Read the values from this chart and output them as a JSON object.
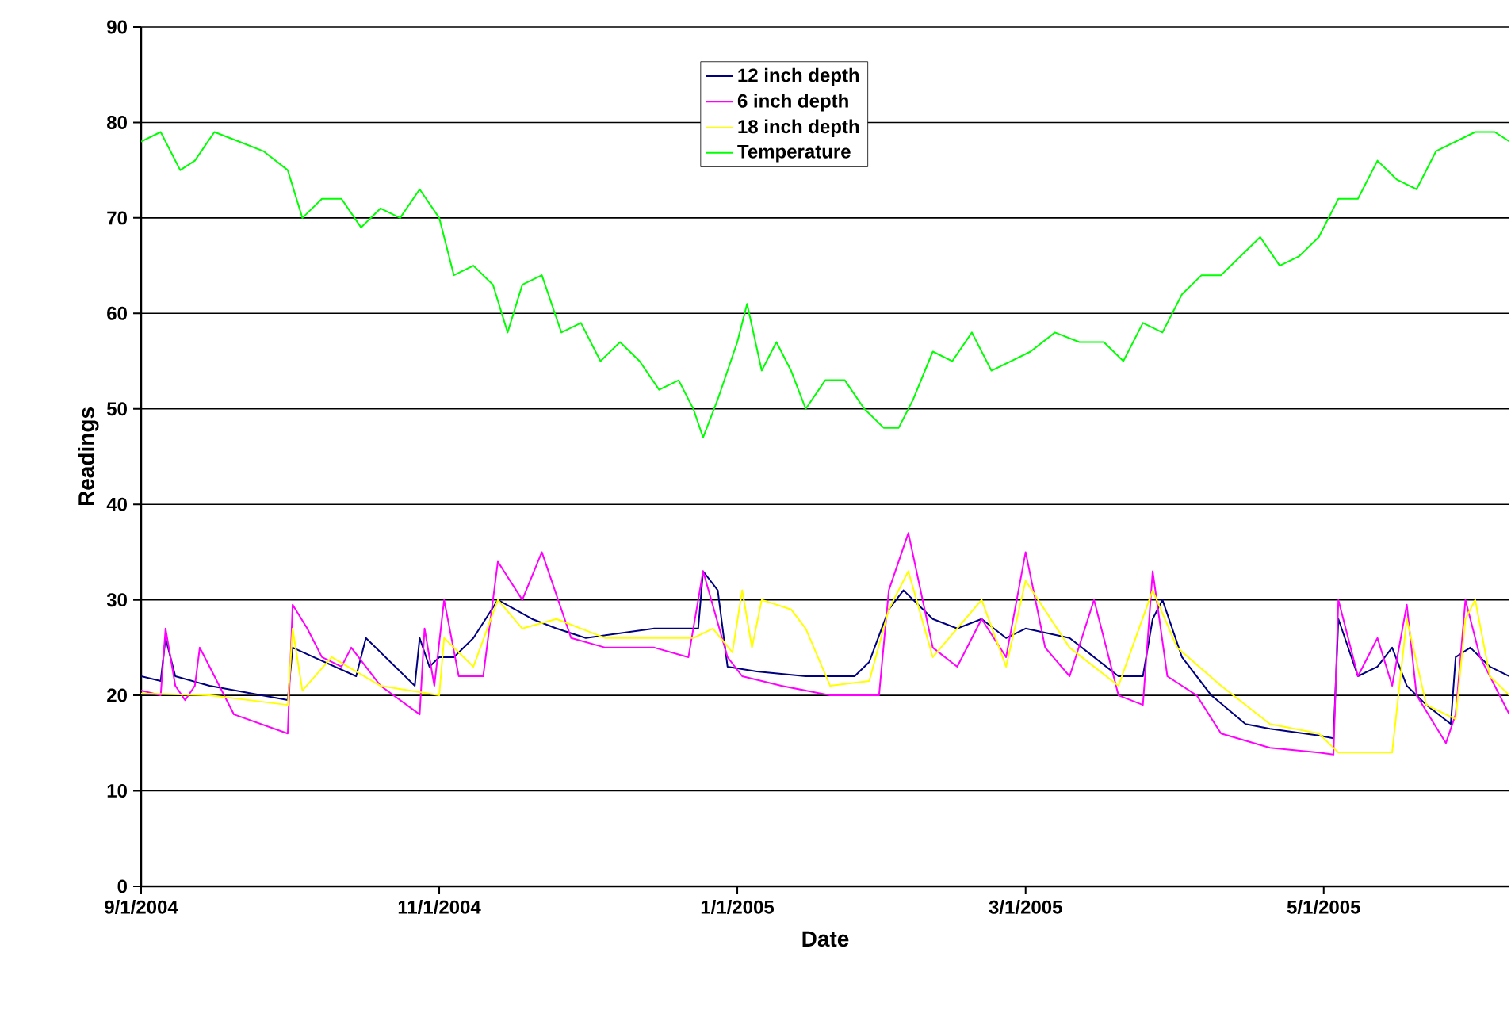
{
  "chart_data": {
    "type": "line",
    "xlabel": "Date",
    "ylabel": "Readings",
    "xlim": [
      "2004-09-01",
      "2005-06-08"
    ],
    "ylim": [
      0,
      90
    ],
    "xticks": [
      {
        "value": "2004-09-01",
        "label": "9/1/2004"
      },
      {
        "value": "2004-11-01",
        "label": "11/1/2004"
      },
      {
        "value": "2005-01-01",
        "label": "1/1/2005"
      },
      {
        "value": "2005-03-01",
        "label": "3/1/2005"
      },
      {
        "value": "2005-05-01",
        "label": "5/1/2005"
      }
    ],
    "yticks": [
      0,
      10,
      20,
      30,
      40,
      50,
      60,
      70,
      80,
      90
    ],
    "grid": "y",
    "legend": "top",
    "series": [
      {
        "name": "12 inch depth",
        "color": "#000080",
        "x": [
          "2004-09-01",
          "2004-09-05",
          "2004-09-06",
          "2004-09-08",
          "2004-09-15",
          "2004-10-01",
          "2004-10-02",
          "2004-10-15",
          "2004-10-17",
          "2004-10-27",
          "2004-10-28",
          "2004-10-30",
          "2004-11-01",
          "2004-11-04",
          "2004-11-08",
          "2004-11-13",
          "2004-11-20",
          "2004-11-25",
          "2004-12-01",
          "2004-12-15",
          "2004-12-24",
          "2004-12-25",
          "2004-12-28",
          "2004-12-30",
          "2005-01-05",
          "2005-01-15",
          "2005-01-25",
          "2005-01-28",
          "2005-02-01",
          "2005-02-04",
          "2005-02-10",
          "2005-02-15",
          "2005-02-20",
          "2005-02-25",
          "2005-03-01",
          "2005-03-10",
          "2005-03-15",
          "2005-03-20",
          "2005-03-25",
          "2005-03-27",
          "2005-03-29",
          "2005-04-02",
          "2005-04-08",
          "2005-04-15",
          "2005-04-20",
          "2005-04-30",
          "2005-05-03",
          "2005-05-04",
          "2005-05-08",
          "2005-05-12",
          "2005-05-15",
          "2005-05-18",
          "2005-05-22",
          "2005-05-27",
          "2005-05-28",
          "2005-05-31",
          "2005-06-04",
          "2005-06-08"
        ],
        "values": [
          22,
          21.5,
          26,
          22,
          21,
          19.5,
          25,
          22,
          26,
          21,
          26,
          23,
          24,
          24,
          26,
          30,
          28,
          27,
          26,
          27,
          27,
          33,
          31,
          23,
          22.5,
          22,
          22,
          23.5,
          29,
          31,
          28,
          27,
          28,
          26,
          27,
          26,
          24,
          22,
          22,
          28,
          30,
          24,
          20,
          17,
          16.5,
          15.8,
          15.5,
          28,
          22,
          23,
          25,
          21,
          19,
          17,
          24,
          25,
          23,
          22
        ]
      },
      {
        "name": "6 inch depth",
        "color": "#ff00ff",
        "x": [
          "2004-09-01",
          "2004-09-05",
          "2004-09-06",
          "2004-09-08",
          "2004-09-10",
          "2004-09-12",
          "2004-09-13",
          "2004-09-20",
          "2004-10-01",
          "2004-10-02",
          "2004-10-05",
          "2004-10-08",
          "2004-10-12",
          "2004-10-14",
          "2004-10-20",
          "2004-10-28",
          "2004-10-29",
          "2004-10-31",
          "2004-11-02",
          "2004-11-05",
          "2004-11-10",
          "2004-11-13",
          "2004-11-18",
          "2004-11-22",
          "2004-11-28",
          "2004-12-05",
          "2004-12-15",
          "2004-12-22",
          "2004-12-25",
          "2004-12-30",
          "2005-01-02",
          "2005-01-10",
          "2005-01-20",
          "2005-01-30",
          "2005-02-01",
          "2005-02-05",
          "2005-02-10",
          "2005-02-15",
          "2005-02-20",
          "2005-02-25",
          "2005-03-01",
          "2005-03-05",
          "2005-03-10",
          "2005-03-15",
          "2005-03-20",
          "2005-03-25",
          "2005-03-27",
          "2005-03-30",
          "2005-04-05",
          "2005-04-10",
          "2005-04-20",
          "2005-04-30",
          "2005-05-03",
          "2005-05-04",
          "2005-05-08",
          "2005-05-12",
          "2005-05-15",
          "2005-05-18",
          "2005-05-20",
          "2005-05-26",
          "2005-05-28",
          "2005-05-30",
          "2005-06-02",
          "2005-06-08"
        ],
        "values": [
          20.5,
          20,
          27,
          21,
          19.5,
          21,
          25,
          18,
          16,
          29.5,
          27,
          24,
          23,
          25,
          21,
          18,
          27,
          21,
          30,
          22,
          22,
          34,
          30,
          35,
          26,
          25,
          25,
          24,
          33,
          24,
          22,
          21,
          20,
          20,
          31,
          37,
          25,
          23,
          28,
          24,
          35,
          25,
          22,
          30,
          20,
          19,
          33,
          22,
          20,
          16,
          14.5,
          14,
          13.8,
          30,
          22,
          26,
          21,
          29.5,
          20,
          15,
          18,
          30,
          24,
          18
        ]
      },
      {
        "name": "18 inch depth",
        "color": "#ffff00",
        "x": [
          "2004-09-01",
          "2004-09-15",
          "2004-10-01",
          "2004-10-02",
          "2004-10-04",
          "2004-10-10",
          "2004-10-20",
          "2004-11-01",
          "2004-11-02",
          "2004-11-08",
          "2004-11-13",
          "2004-11-18",
          "2004-11-25",
          "2004-12-05",
          "2004-12-15",
          "2004-12-23",
          "2004-12-27",
          "2004-12-31",
          "2005-01-02",
          "2005-01-04",
          "2005-01-06",
          "2005-01-12",
          "2005-01-15",
          "2005-01-20",
          "2005-01-28",
          "2005-02-01",
          "2005-02-05",
          "2005-02-10",
          "2005-02-20",
          "2005-02-25",
          "2005-03-01",
          "2005-03-10",
          "2005-03-20",
          "2005-03-27",
          "2005-04-01",
          "2005-04-10",
          "2005-04-20",
          "2005-04-30",
          "2005-05-04",
          "2005-05-15",
          "2005-05-18",
          "2005-05-22",
          "2005-05-26",
          "2005-05-28",
          "2005-05-30",
          "2005-06-01",
          "2005-06-04",
          "2005-06-08"
        ],
        "values": [
          20.2,
          20,
          19,
          27,
          20.5,
          24,
          21,
          20,
          26,
          23,
          30,
          27,
          28,
          26,
          26,
          26,
          27,
          24.5,
          31,
          25,
          30,
          29,
          27,
          21,
          21.5,
          29,
          33,
          24,
          30,
          23,
          32,
          25,
          21,
          31,
          25,
          21,
          17,
          16,
          14,
          14,
          28,
          19,
          18,
          17.5,
          28,
          30,
          22,
          20
        ]
      },
      {
        "name": "Temperature",
        "color": "#00ff00",
        "x": [
          "2004-09-01",
          "2004-09-05",
          "2004-09-09",
          "2004-09-12",
          "2004-09-16",
          "2004-09-21",
          "2004-09-26",
          "2004-10-01",
          "2004-10-04",
          "2004-10-08",
          "2004-10-12",
          "2004-10-16",
          "2004-10-20",
          "2004-10-24",
          "2004-10-28",
          "2004-11-01",
          "2004-11-04",
          "2004-11-08",
          "2004-11-12",
          "2004-11-15",
          "2004-11-18",
          "2004-11-22",
          "2004-11-26",
          "2004-11-30",
          "2004-12-04",
          "2004-12-08",
          "2004-12-12",
          "2004-12-16",
          "2004-12-20",
          "2004-12-23",
          "2004-12-25",
          "2004-12-28",
          "2005-01-01",
          "2005-01-03",
          "2005-01-06",
          "2005-01-09",
          "2005-01-12",
          "2005-01-15",
          "2005-01-19",
          "2005-01-23",
          "2005-01-27",
          "2005-01-31",
          "2005-02-03",
          "2005-02-06",
          "2005-02-10",
          "2005-02-14",
          "2005-02-18",
          "2005-02-22",
          "2005-02-26",
          "2005-03-02",
          "2005-03-07",
          "2005-03-12",
          "2005-03-17",
          "2005-03-21",
          "2005-03-25",
          "2005-03-29",
          "2005-04-02",
          "2005-04-06",
          "2005-04-10",
          "2005-04-14",
          "2005-04-18",
          "2005-04-22",
          "2005-04-26",
          "2005-04-30",
          "2005-05-04",
          "2005-05-08",
          "2005-05-12",
          "2005-05-16",
          "2005-05-20",
          "2005-05-24",
          "2005-05-28",
          "2005-06-01",
          "2005-06-05",
          "2005-06-08"
        ],
        "values": [
          78,
          79,
          75,
          76,
          79,
          78,
          77,
          75,
          70,
          72,
          72,
          69,
          71,
          70,
          73,
          70,
          64,
          65,
          63,
          58,
          63,
          64,
          58,
          59,
          55,
          57,
          55,
          52,
          53,
          50,
          47,
          51,
          57,
          61,
          54,
          57,
          54,
          50,
          53,
          53,
          50,
          48,
          48,
          51,
          56,
          55,
          58,
          54,
          55,
          56,
          58,
          57,
          57,
          55,
          59,
          58,
          62,
          64,
          64,
          66,
          68,
          65,
          66,
          68,
          72,
          72,
          76,
          74,
          73,
          77,
          78,
          79,
          79,
          78
        ]
      }
    ]
  }
}
